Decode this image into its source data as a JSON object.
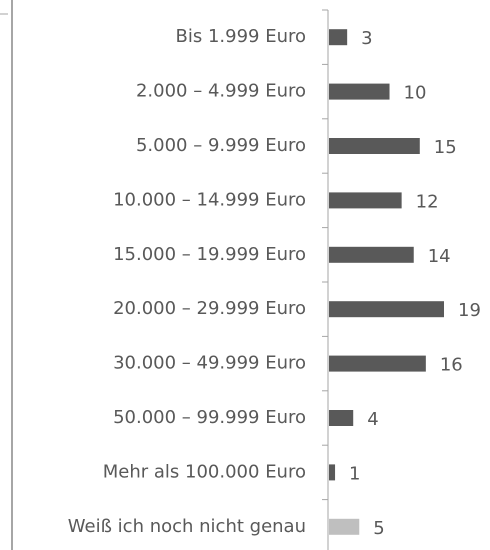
{
  "chart_data": {
    "type": "bar",
    "orientation": "horizontal",
    "categories": [
      "Bis 1.999 Euro",
      "2.000 – 4.999 Euro",
      "5.000 – 9.999 Euro",
      "10.000 – 14.999 Euro",
      "15.000 – 19.999 Euro",
      "20.000 – 29.999 Euro",
      "30.000 – 49.999 Euro",
      "50.000 – 99.999 Euro",
      "Mehr als 100.000 Euro",
      "Weiß ich noch nicht genau"
    ],
    "values": [
      3,
      10,
      15,
      12,
      14,
      19,
      16,
      4,
      1,
      5
    ],
    "colors": [
      "#595959",
      "#595959",
      "#595959",
      "#595959",
      "#595959",
      "#595959",
      "#595959",
      "#595959",
      "#595959",
      "#bfbfbf"
    ]
  }
}
